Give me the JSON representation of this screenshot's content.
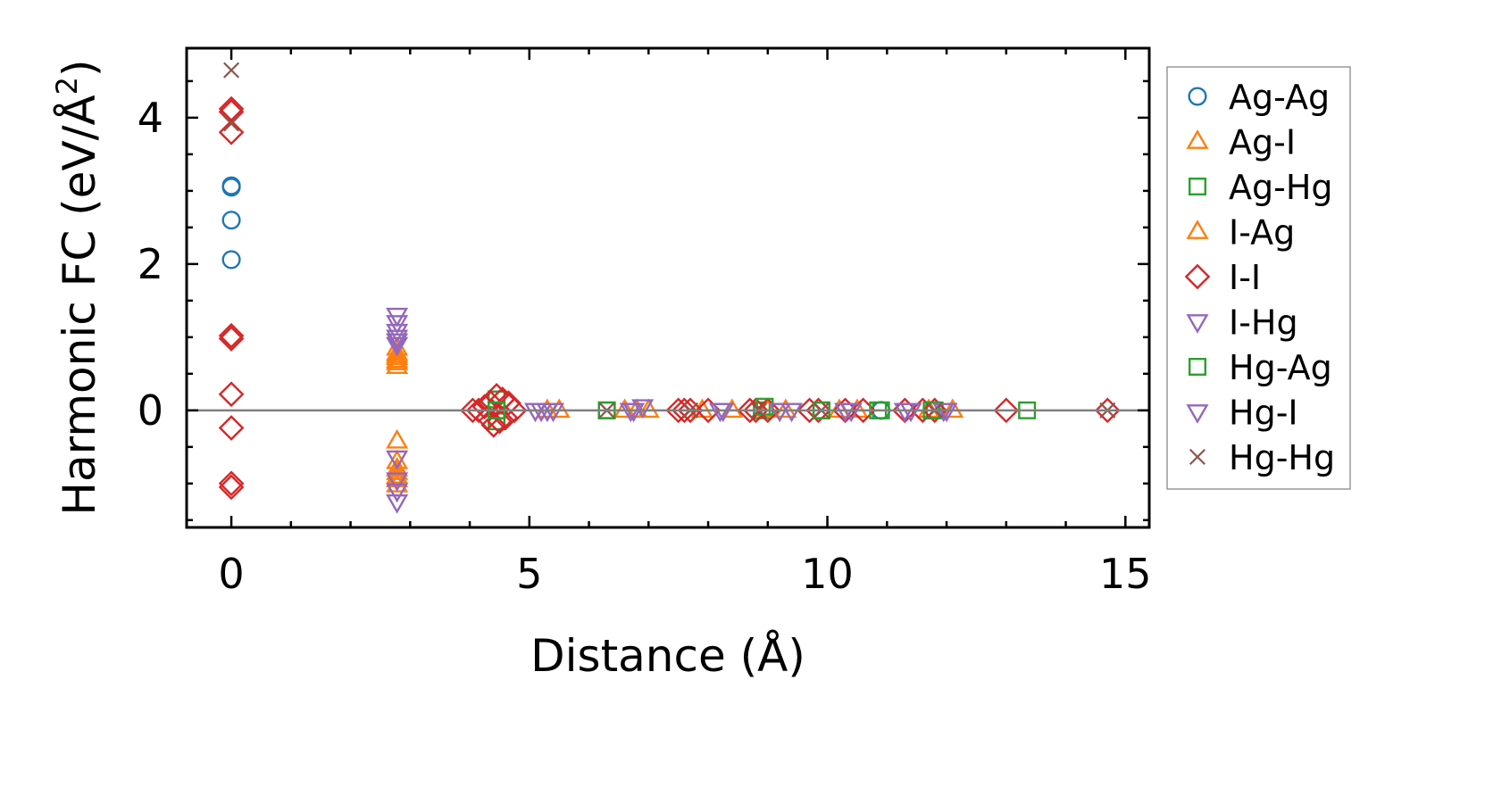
{
  "chart_data": {
    "type": "scatter",
    "title": "",
    "xlabel": "Distance (Å)",
    "ylabel_main": "Harmonic FC (eV/Å",
    "ylabel_sup": "2",
    "ylabel_tail": ")",
    "xlim": [
      -0.75,
      15.4
    ],
    "ylim": [
      -1.6,
      4.95
    ],
    "xticks": [
      0,
      5,
      10,
      15
    ],
    "xtick_labels": [
      "0",
      "5",
      "10",
      "15"
    ],
    "yticks": [
      0,
      2,
      4
    ],
    "ytick_labels": [
      "0",
      "2",
      "4"
    ],
    "x_minor_step": 1,
    "y_minor_step": 0.5,
    "zero_line": true,
    "grid": false,
    "legend_position": "outside-right",
    "series": [
      {
        "name": "Ag-Ag",
        "marker": "circle",
        "color": "#1f77b4",
        "x": [
          0,
          0,
          0,
          0,
          10.9
        ],
        "y": [
          3.07,
          3.05,
          2.6,
          2.06,
          0.0
        ]
      },
      {
        "name": "Ag-I",
        "marker": "triangle-up",
        "color": "#ff7f0e",
        "x": [
          2.78,
          2.78,
          2.78,
          2.78,
          2.78,
          2.78,
          2.78,
          2.78,
          2.78,
          5.3,
          6.8,
          7.0,
          8.4,
          9.3,
          10.2,
          11.7,
          12.1
        ],
        "y": [
          0.85,
          0.78,
          0.72,
          0.65,
          -0.42,
          -0.7,
          -0.8,
          -0.95,
          -1.02,
          0.0,
          0.0,
          0.0,
          0.0,
          0.0,
          0.0,
          0.0,
          0.0
        ]
      },
      {
        "name": "Ag-Hg",
        "marker": "square",
        "color": "#2ca02c",
        "x": [
          4.45,
          4.45,
          4.45,
          6.3,
          8.9,
          9.9,
          10.9,
          11.8,
          13.35
        ],
        "y": [
          0.15,
          0.0,
          -0.15,
          0.0,
          0.0,
          0.0,
          0.0,
          0.0,
          0.0
        ]
      },
      {
        "name": "I-Ag",
        "marker": "triangle-up",
        "color": "#ff7f0e",
        "x": [
          2.78,
          2.78,
          2.78,
          2.78,
          2.78,
          5.5,
          6.6,
          7.9,
          9.0,
          10.5
        ],
        "y": [
          0.75,
          0.68,
          0.6,
          -0.85,
          -0.9,
          0.0,
          0.0,
          0.0,
          0.0,
          0.0
        ]
      },
      {
        "name": "I-I",
        "marker": "diamond",
        "color": "#d62728",
        "x": [
          0,
          0,
          0,
          0,
          0,
          0,
          0,
          0,
          0,
          4.05,
          4.15,
          4.25,
          4.35,
          4.45,
          4.55,
          4.65,
          4.75,
          4.4,
          4.5,
          4.6,
          4.3,
          7.5,
          7.6,
          7.7,
          8.0,
          8.7,
          8.8,
          9.0,
          9.7,
          9.85,
          10.3,
          10.6,
          11.3,
          11.6,
          11.8,
          13.0,
          14.7
        ],
        "y": [
          4.12,
          4.08,
          3.8,
          1.02,
          0.98,
          0.22,
          -0.24,
          -1.0,
          -1.05,
          0.0,
          0.0,
          0.05,
          0.1,
          0.2,
          0.15,
          0.1,
          0.0,
          -0.2,
          -0.15,
          -0.1,
          -0.1,
          0.0,
          0.0,
          0.0,
          0.0,
          0.0,
          0.0,
          0.0,
          0.0,
          0.0,
          0.0,
          0.0,
          0.0,
          0.0,
          0.0,
          0.0,
          0.0
        ]
      },
      {
        "name": "I-Hg",
        "marker": "triangle-down",
        "color": "#9467bd",
        "x": [
          2.78,
          2.78,
          2.78,
          2.78,
          2.78,
          2.78,
          2.78,
          5.1,
          5.3,
          6.7,
          6.9,
          8.2,
          9.4,
          10.3,
          11.4,
          12.0
        ],
        "y": [
          1.3,
          1.2,
          1.0,
          0.95,
          -0.65,
          -1.1,
          -1.25,
          0.0,
          0.0,
          0.0,
          0.05,
          0.0,
          0.0,
          0.0,
          0.0,
          0.0
        ]
      },
      {
        "name": "Hg-Ag",
        "marker": "square",
        "color": "#2ca02c",
        "x": [
          4.45,
          6.3,
          8.95,
          9.9,
          10.85,
          11.75
        ],
        "y": [
          0.0,
          0.0,
          0.05,
          0.0,
          0.0,
          0.0
        ]
      },
      {
        "name": "Hg-I",
        "marker": "triangle-down",
        "color": "#9467bd",
        "x": [
          2.78,
          2.78,
          2.78,
          5.2,
          5.4,
          6.75,
          8.25,
          9.2,
          10.4,
          11.3,
          11.95
        ],
        "y": [
          1.08,
          0.9,
          -0.95,
          0.0,
          0.0,
          0.0,
          0.0,
          0.0,
          0.0,
          0.0,
          0.0
        ]
      },
      {
        "name": "Hg-Hg",
        "marker": "x",
        "color": "#8c564b",
        "x": [
          0,
          0,
          6.3,
          7.7,
          8.85,
          9.9,
          11.8,
          14.7
        ],
        "y": [
          4.65,
          3.92,
          0.0,
          0.0,
          0.0,
          0.0,
          0.0,
          0.0
        ]
      }
    ]
  }
}
